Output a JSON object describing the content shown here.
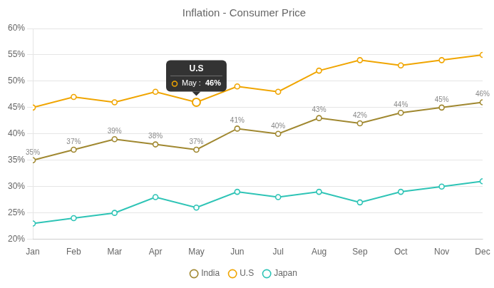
{
  "chart_data": {
    "type": "line",
    "title": "Inflation - Consumer Price",
    "categories": [
      "Jan",
      "Feb",
      "Mar",
      "Apr",
      "May",
      "Jun",
      "Jul",
      "Aug",
      "Sep",
      "Oct",
      "Nov",
      "Dec"
    ],
    "series": [
      {
        "name": "India",
        "color": "#a08830",
        "marker": "circle",
        "values": [
          35,
          37,
          39,
          38,
          37,
          41,
          40,
          43,
          42,
          44,
          45,
          46
        ],
        "value_labels": [
          "35%",
          "37%",
          "39%",
          "38%",
          "37%",
          "41%",
          "40%",
          "43%",
          "42%",
          "44%",
          "45%",
          "46%"
        ]
      },
      {
        "name": "U.S",
        "color": "#f0a500",
        "marker": "circle",
        "values": [
          45,
          47,
          46,
          48,
          46,
          49,
          48,
          52,
          54,
          53,
          54,
          55
        ]
      },
      {
        "name": "Japan",
        "color": "#2ec4b6",
        "marker": "circle",
        "values": [
          23,
          24,
          25,
          28,
          26,
          29,
          28,
          29,
          27,
          29,
          30,
          31
        ]
      }
    ],
    "ylim": [
      20,
      60
    ],
    "yticks": [
      {
        "value": 20,
        "label": "20%"
      },
      {
        "value": 25,
        "label": "25%"
      },
      {
        "value": 30,
        "label": "30%"
      },
      {
        "value": 35,
        "label": "35%"
      },
      {
        "value": 40,
        "label": "40%"
      },
      {
        "value": 45,
        "label": "45%"
      },
      {
        "value": 50,
        "label": "50%"
      },
      {
        "value": 55,
        "label": "55%"
      },
      {
        "value": 60,
        "label": "60%"
      }
    ],
    "grid": true,
    "legend": "bottom",
    "annotations": [
      {
        "series": "U.S",
        "x": "May",
        "text": "May :",
        "value": 46,
        "value_label": "46%"
      }
    ]
  }
}
